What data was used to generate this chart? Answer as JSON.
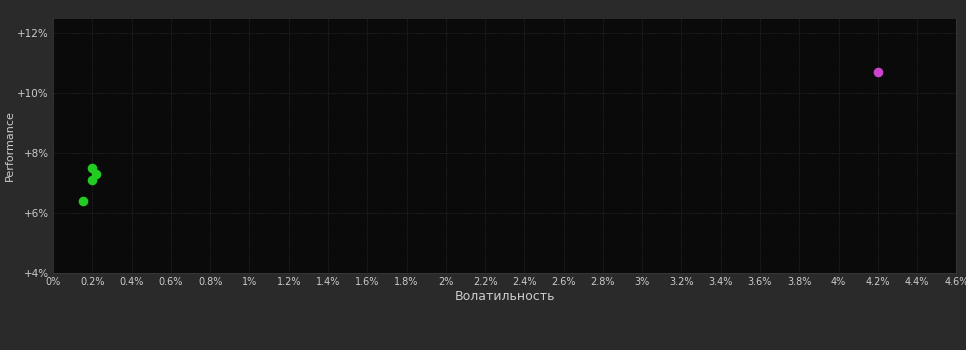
{
  "background_color": "#2a2a2a",
  "plot_bg_color": "#0a0a0a",
  "grid_color": "#3a3a3a",
  "text_color": "#cccccc",
  "xlabel": "Волатильность",
  "ylabel": "Performance",
  "xlim": [
    0.0,
    0.046
  ],
  "ylim": [
    0.04,
    0.125
  ],
  "xtick_step": 0.002,
  "ytick_values": [
    0.04,
    0.06,
    0.08,
    0.1,
    0.12
  ],
  "green_points": [
    [
      0.002,
      0.075
    ],
    [
      0.0022,
      0.073
    ],
    [
      0.002,
      0.071
    ],
    [
      0.0015,
      0.064
    ]
  ],
  "magenta_points": [
    [
      0.042,
      0.107
    ]
  ],
  "point_size": 35,
  "magenta_color": "#cc44cc",
  "green_color": "#22cc22"
}
